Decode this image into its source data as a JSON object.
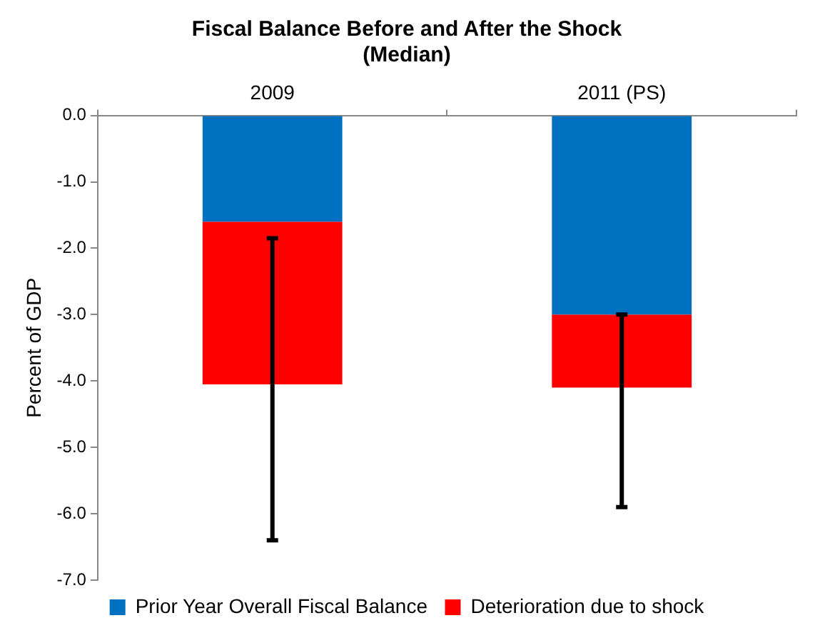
{
  "chart_data": {
    "type": "bar",
    "title": "Fiscal Balance Before and After the Shock",
    "subtitle": "(Median)",
    "ylabel": "Percent of GDP",
    "categories": [
      "2009",
      "2011 (PS)"
    ],
    "stacked": true,
    "legend": "bottom",
    "ylim": [
      -7,
      0
    ],
    "yticks": [
      {
        "value": 0,
        "label": "0.0"
      },
      {
        "value": -1,
        "label": "-1.0"
      },
      {
        "value": -2,
        "label": "-2.0"
      },
      {
        "value": -3,
        "label": "-3.0"
      },
      {
        "value": -4,
        "label": "-4.0"
      },
      {
        "value": -5,
        "label": "-5.0"
      },
      {
        "value": -6,
        "label": "-6.0"
      },
      {
        "value": -7,
        "label": "-7.0"
      }
    ],
    "series": [
      {
        "name": "Prior Year Overall Fiscal Balance",
        "color": "#0070c0",
        "values": [
          -1.6,
          -3.0
        ]
      },
      {
        "name": "Deterioration due to shock",
        "color": "#ff0000",
        "values": [
          -2.45,
          -1.1
        ],
        "errors": [
          [
            -6.4,
            -1.85
          ],
          [
            -5.9,
            -3.0
          ]
        ]
      }
    ]
  }
}
